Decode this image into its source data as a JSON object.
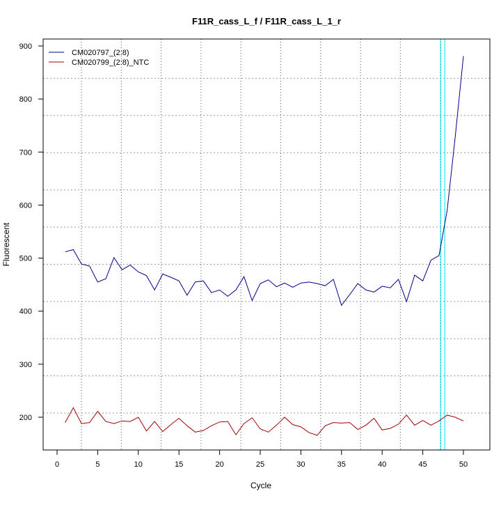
{
  "chart_data": {
    "type": "line",
    "title": "F11R_cass_L_f / F11R_cass_L_1_r",
    "xlabel": "Cycle",
    "ylabel": "Fluorescent",
    "xlim": [
      0,
      50
    ],
    "ylim": [
      150,
      900
    ],
    "xticks": [
      0,
      5,
      10,
      15,
      20,
      25,
      30,
      35,
      40,
      45,
      50
    ],
    "yticks": [
      200,
      300,
      400,
      500,
      600,
      700,
      800,
      900
    ],
    "grid": true,
    "legend_position": "top-left",
    "threshold_cycles": [
      47.2,
      47.7
    ],
    "threshold_color": "#00e5ee",
    "x": [
      1,
      2,
      3,
      4,
      5,
      6,
      7,
      8,
      9,
      10,
      11,
      12,
      13,
      14,
      15,
      16,
      17,
      18,
      19,
      20,
      21,
      22,
      23,
      24,
      25,
      26,
      27,
      28,
      29,
      30,
      31,
      32,
      33,
      34,
      35,
      36,
      37,
      38,
      39,
      40,
      41,
      42,
      43,
      44,
      45,
      46,
      47,
      48,
      49,
      50
    ],
    "series": [
      {
        "name": "CM020797_(2:8)",
        "color": "#00008b",
        "values": [
          512,
          516,
          489,
          485,
          455,
          461,
          501,
          478,
          487,
          474,
          467,
          440,
          470,
          464,
          457,
          430,
          455,
          457,
          435,
          440,
          428,
          440,
          465,
          420,
          452,
          459,
          446,
          453,
          445,
          453,
          455,
          452,
          448,
          460,
          411,
          431,
          452,
          440,
          436,
          447,
          444,
          460,
          418,
          468,
          457,
          496,
          505,
          590,
          730,
          881
        ]
      },
      {
        "name": "CM020799_(2:8)_NTC",
        "color": "#a00000",
        "values": [
          190,
          218,
          188,
          190,
          211,
          192,
          188,
          193,
          192,
          200,
          174,
          192,
          173,
          186,
          198,
          184,
          172,
          175,
          184,
          191,
          192,
          167,
          188,
          199,
          178,
          172,
          185,
          200,
          186,
          182,
          171,
          166,
          184,
          190,
          189,
          190,
          177,
          185,
          198,
          176,
          179,
          187,
          204,
          185,
          194,
          185,
          193,
          204,
          200,
          193
        ]
      }
    ]
  }
}
